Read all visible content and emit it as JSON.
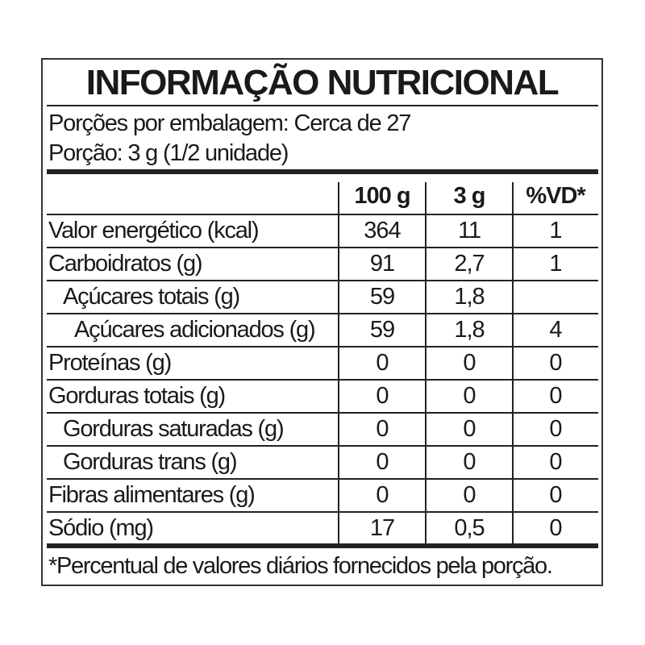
{
  "title": "INFORMAÇÃO NUTRICIONAL",
  "servings_per_package": "Porções por embalagem: Cerca de 27",
  "serving_size": "Porção: 3 g (1/2 unidade)",
  "columns": [
    "100 g",
    "3 g",
    "%VD*"
  ],
  "rows": [
    {
      "label": "Valor energético (kcal)",
      "indent": 0,
      "per100g": "364",
      "perServing": "11",
      "vd": "1"
    },
    {
      "label": "Carboidratos (g)",
      "indent": 0,
      "per100g": "91",
      "perServing": "2,7",
      "vd": "1"
    },
    {
      "label": "Açúcares totais (g)",
      "indent": 1,
      "per100g": "59",
      "perServing": "1,8",
      "vd": ""
    },
    {
      "label": "Açúcares adicionados (g)",
      "indent": 2,
      "per100g": "59",
      "perServing": "1,8",
      "vd": "4"
    },
    {
      "label": "Proteínas (g)",
      "indent": 0,
      "per100g": "0",
      "perServing": "0",
      "vd": "0"
    },
    {
      "label": "Gorduras totais (g)",
      "indent": 0,
      "per100g": "0",
      "perServing": "0",
      "vd": "0"
    },
    {
      "label": "Gorduras saturadas (g)",
      "indent": 1,
      "per100g": "0",
      "perServing": "0",
      "vd": "0"
    },
    {
      "label": "Gorduras trans (g)",
      "indent": 1,
      "per100g": "0",
      "perServing": "0",
      "vd": "0"
    },
    {
      "label": "Fibras alimentares (g)",
      "indent": 0,
      "per100g": "0",
      "perServing": "0",
      "vd": "0"
    },
    {
      "label": "Sódio (mg)",
      "indent": 0,
      "per100g": "17",
      "perServing": "0,5",
      "vd": "0"
    }
  ],
  "footnote": "*Percentual de valores diários fornecidos pela porção."
}
